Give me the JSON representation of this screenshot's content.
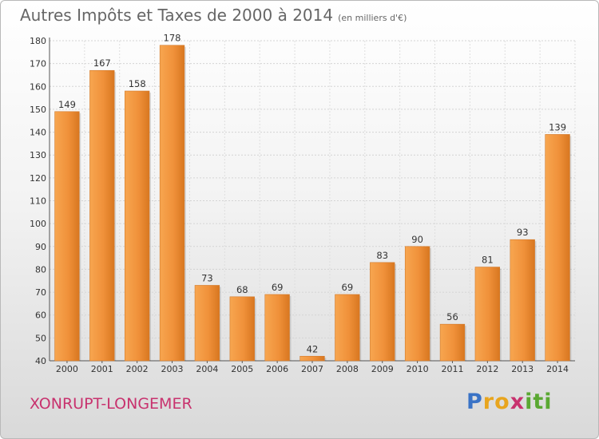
{
  "chart_data": {
    "type": "bar",
    "title": "Autres Impôts et Taxes de 2000 à 2014",
    "subtitle": "(en milliers d'€)",
    "xlabel": "",
    "ylabel": "",
    "categories": [
      "2000",
      "2001",
      "2002",
      "2003",
      "2004",
      "2005",
      "2006",
      "2007",
      "2008",
      "2009",
      "2010",
      "2011",
      "2012",
      "2013",
      "2014"
    ],
    "values": [
      149,
      167,
      158,
      178,
      73,
      68,
      69,
      42,
      69,
      83,
      90,
      56,
      81,
      93,
      139
    ],
    "ylim": [
      40,
      180
    ],
    "yticks": [
      40,
      50,
      60,
      70,
      80,
      90,
      100,
      110,
      120,
      130,
      140,
      150,
      160,
      170,
      180
    ],
    "grid": true,
    "legend": "none",
    "bar_color": "#f0913a"
  },
  "footer": {
    "location": "XONRUPT-LONGEMER",
    "logo_letters": [
      {
        "char": "P",
        "color": "#3a73c6"
      },
      {
        "char": "r",
        "color": "#e8a51e"
      },
      {
        "char": "o",
        "color": "#e8a51e"
      },
      {
        "char": "x",
        "color": "#c8326e"
      },
      {
        "char": "i",
        "color": "#5aa832"
      },
      {
        "char": "t",
        "color": "#5aa832"
      },
      {
        "char": "i",
        "color": "#5aa832"
      }
    ]
  }
}
